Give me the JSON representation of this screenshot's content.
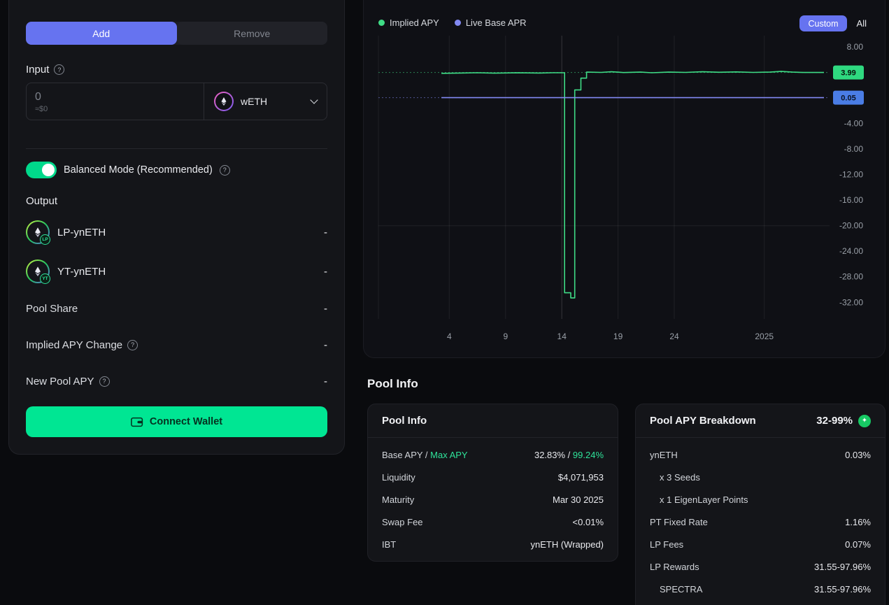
{
  "left_panel": {
    "tabs": {
      "add": "Add",
      "remove": "Remove"
    },
    "input": {
      "label": "Input",
      "amount": "0",
      "usd": "≈$0",
      "token": "wETH"
    },
    "balanced_mode_label": "Balanced Mode (Recommended)",
    "output_label": "Output",
    "outputs": [
      {
        "label": "LP-ynETH",
        "badge": "LP",
        "value": "-"
      },
      {
        "label": "YT-ynETH",
        "badge": "YT",
        "value": "-"
      }
    ],
    "stats": [
      {
        "label": "Pool Share",
        "value": "-",
        "help": false
      },
      {
        "label": "Implied APY Change",
        "value": "-",
        "help": true
      },
      {
        "label": "New Pool APY",
        "value": "-",
        "help": true
      }
    ],
    "connect_wallet_label": "Connect Wallet"
  },
  "chart": {
    "range_controls": {
      "custom": "Custom",
      "all": "All"
    }
  },
  "chart_data": {
    "type": "line",
    "legend": [
      {
        "name": "Implied APY",
        "color": "#3fdc86"
      },
      {
        "name": "Live Base APR",
        "color": "#8289f2"
      }
    ],
    "x_domain": [
      -2.3,
      37.8
    ],
    "y_domain": [
      -34.6,
      9.75
    ],
    "x_ticks": [
      {
        "day": 4,
        "label": "4",
        "emph": false
      },
      {
        "day": 9,
        "label": "9",
        "emph": false
      },
      {
        "day": 14,
        "label": "14",
        "emph": true
      },
      {
        "day": 19,
        "label": "19",
        "emph": false
      },
      {
        "day": 24,
        "label": "24",
        "emph": false
      },
      {
        "day": 32,
        "label": "2025",
        "emph": false
      }
    ],
    "y_ticks": [
      {
        "value": 8,
        "label": "8.00"
      },
      {
        "value": -4,
        "label": "-4.00"
      },
      {
        "value": -8,
        "label": "-8.00"
      },
      {
        "value": -12,
        "label": "-12.00"
      },
      {
        "value": -16,
        "label": "-16.00"
      },
      {
        "value": -20,
        "label": "-20.00"
      },
      {
        "value": -24,
        "label": "-24.00"
      },
      {
        "value": -28,
        "label": "-28.00"
      },
      {
        "value": -32,
        "label": "-32.00"
      }
    ],
    "h_grid": [
      -20
    ],
    "ref_lines": [
      {
        "value": 3.99,
        "color": "#3fdc86"
      },
      {
        "value": 0.05,
        "color": "#8289f2"
      }
    ],
    "badges": [
      {
        "label": "3.99",
        "value": 3.99,
        "bg": "#2fd980",
        "fg": "#07130c"
      },
      {
        "label": "0.05",
        "value": 0.05,
        "bg": "#4a7de5",
        "fg": "#0a1324"
      }
    ],
    "series": [
      {
        "name": "Implied APY",
        "color": "#3fdc86",
        "points": [
          [
            3.3,
            3.85
          ],
          [
            5,
            3.9
          ],
          [
            6.5,
            3.95
          ],
          [
            8,
            3.88
          ],
          [
            10,
            3.93
          ],
          [
            12,
            3.9
          ],
          [
            13.2,
            3.95
          ],
          [
            14.25,
            3.95
          ],
          [
            14.25,
            -30.5
          ],
          [
            14.8,
            -30.5
          ],
          [
            14.8,
            -31.3
          ],
          [
            15.15,
            -31.3
          ],
          [
            15.15,
            1.25
          ],
          [
            15.7,
            1.25
          ],
          [
            15.7,
            3.1
          ],
          [
            16.2,
            3.1
          ],
          [
            16.2,
            4.05
          ],
          [
            17.5,
            4.0
          ],
          [
            18.4,
            4.1
          ],
          [
            19.5,
            3.98
          ],
          [
            21,
            4.05
          ],
          [
            22,
            3.95
          ],
          [
            23.5,
            4.05
          ],
          [
            25,
            4.0
          ],
          [
            26.5,
            4.1
          ],
          [
            28,
            4.02
          ],
          [
            29.5,
            4.08
          ],
          [
            31,
            4.0
          ],
          [
            32.5,
            4.05
          ],
          [
            33.5,
            4.15
          ],
          [
            34.5,
            4.05
          ],
          [
            35.5,
            3.99
          ],
          [
            37.3,
            3.99
          ]
        ]
      },
      {
        "name": "Live Base APR",
        "color": "#8289f2",
        "points": [
          [
            3.3,
            0.05
          ],
          [
            37.3,
            0.05
          ]
        ]
      }
    ]
  },
  "pool_section": {
    "heading": "Pool Info",
    "info_card": {
      "title": "Pool Info",
      "apy_row": {
        "label_base": "Base APY / ",
        "label_max": "Max APY",
        "value_base": "32.83% / ",
        "value_max": "99.24%"
      },
      "rows": [
        {
          "label": "Liquidity",
          "value": "$4,071,953"
        },
        {
          "label": "Maturity",
          "value": "Mar 30 2025"
        },
        {
          "label": "Swap Fee",
          "value": "<0.01%"
        },
        {
          "label": "IBT",
          "value": "ynETH (Wrapped)"
        }
      ]
    },
    "breakdown_card": {
      "title": "Pool APY Breakdown",
      "total": "32-99%",
      "rows": [
        {
          "label": "ynETH",
          "value": "0.03%"
        },
        {
          "label": "x 3 Seeds",
          "value": ""
        },
        {
          "label": "x 1 EigenLayer Points",
          "value": ""
        },
        {
          "label": "PT Fixed Rate",
          "value": "1.16%"
        },
        {
          "label": "LP Fees",
          "value": "0.07%"
        },
        {
          "label": "LP Rewards",
          "value": "31.55-97.96%"
        },
        {
          "label": "SPECTRA",
          "value": "31.55-97.96%"
        }
      ]
    }
  },
  "colors": {
    "accent_green": "#00e693",
    "accent_blue": "#6673f0",
    "line_green": "#3fdc86",
    "line_blue": "#8289f2"
  }
}
